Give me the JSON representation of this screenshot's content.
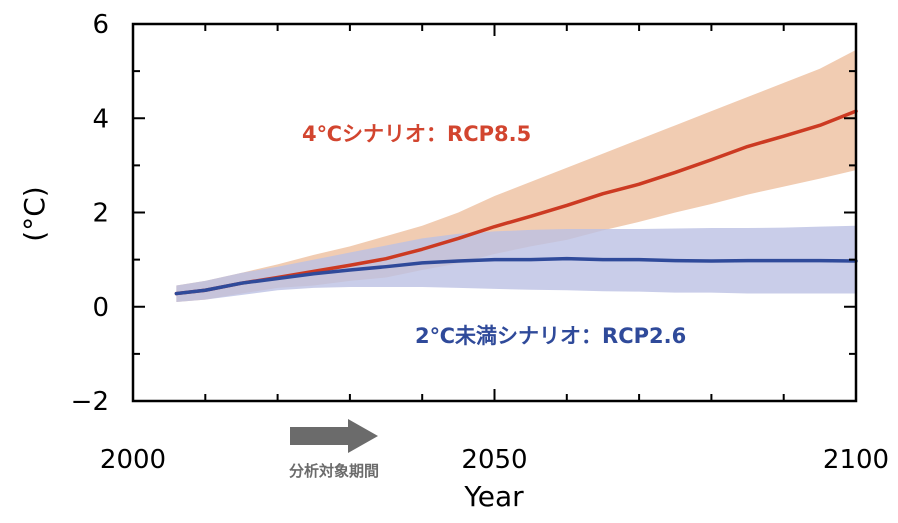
{
  "chart_data": {
    "type": "line",
    "title": "",
    "xlabel": "Year",
    "ylabel": "(°C)",
    "xlim": [
      2000,
      2100
    ],
    "ylim": [
      -2,
      6
    ],
    "x_ticks": [
      2000,
      2050,
      2100
    ],
    "y_ticks": [
      -2,
      0,
      2,
      4,
      6
    ],
    "grid": false,
    "series": [
      {
        "color": "#cc3a22",
        "band_color": "#edbf9f",
        "x": [
          2006,
          2010,
          2015,
          2020,
          2025,
          2030,
          2035,
          2040,
          2045,
          2050,
          2055,
          2060,
          2065,
          2070,
          2075,
          2080,
          2085,
          2090,
          2095,
          2100
        ],
        "values": [
          0.28,
          0.35,
          0.5,
          0.62,
          0.75,
          0.88,
          1.02,
          1.22,
          1.45,
          1.7,
          1.92,
          2.15,
          2.4,
          2.6,
          2.85,
          3.12,
          3.4,
          3.62,
          3.85,
          4.15
        ],
        "lower": [
          0.1,
          0.15,
          0.28,
          0.4,
          0.45,
          0.55,
          0.62,
          0.78,
          0.92,
          1.12,
          1.28,
          1.42,
          1.62,
          1.8,
          2.0,
          2.18,
          2.38,
          2.55,
          2.72,
          2.9
        ],
        "upper": [
          0.45,
          0.55,
          0.72,
          0.9,
          1.1,
          1.28,
          1.5,
          1.72,
          2.0,
          2.35,
          2.65,
          2.95,
          3.25,
          3.55,
          3.85,
          4.15,
          4.45,
          4.75,
          5.05,
          5.45
        ]
      },
      {
        "color": "#2f4a9a",
        "band_color": "#bcc0e3",
        "x": [
          2006,
          2010,
          2015,
          2020,
          2025,
          2030,
          2035,
          2040,
          2045,
          2050,
          2055,
          2060,
          2065,
          2070,
          2075,
          2080,
          2085,
          2090,
          2095,
          2100
        ],
        "values": [
          0.28,
          0.35,
          0.5,
          0.6,
          0.7,
          0.78,
          0.85,
          0.93,
          0.97,
          1.0,
          1.0,
          1.02,
          1.0,
          1.0,
          0.98,
          0.97,
          0.98,
          0.98,
          0.98,
          0.97
        ],
        "lower": [
          0.1,
          0.15,
          0.25,
          0.35,
          0.4,
          0.42,
          0.42,
          0.42,
          0.4,
          0.38,
          0.36,
          0.35,
          0.33,
          0.32,
          0.3,
          0.3,
          0.28,
          0.28,
          0.28,
          0.28
        ],
        "upper": [
          0.45,
          0.55,
          0.72,
          0.85,
          1.0,
          1.15,
          1.3,
          1.45,
          1.55,
          1.6,
          1.63,
          1.65,
          1.65,
          1.65,
          1.66,
          1.67,
          1.67,
          1.68,
          1.7,
          1.72
        ]
      }
    ],
    "annotations": [
      {
        "text": "4℃シナリオ：RCP8.5",
        "color": "#d2452f"
      },
      {
        "text": "2℃未満シナリオ：RCP2.6",
        "color": "#2f4a9a"
      }
    ],
    "period": {
      "label": "分析対象期間",
      "arrow_color": "#6b6b6b"
    }
  }
}
